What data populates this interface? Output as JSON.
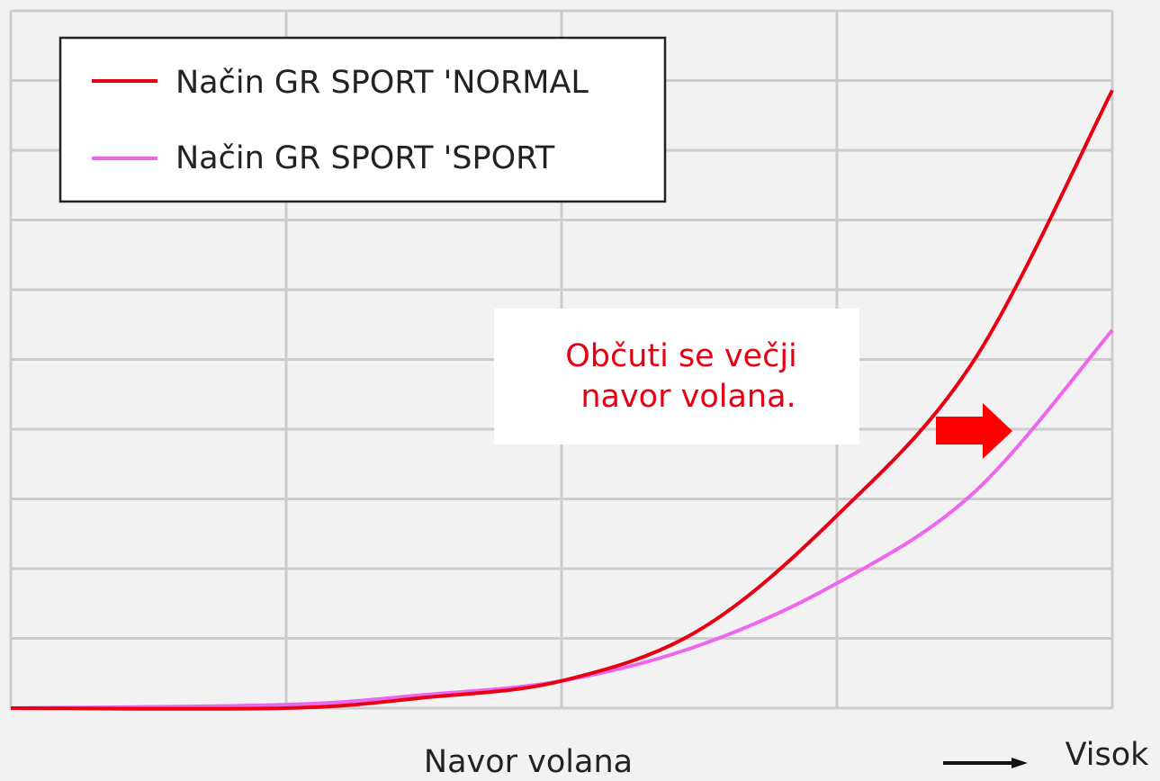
{
  "chart_data": {
    "type": "line",
    "x_label": "Navor volana",
    "x_end_label": "Visok",
    "annotation": [
      "Občuti se večji",
      "navor volana."
    ],
    "x": [
      0,
      1,
      1.5,
      2,
      2.5,
      3,
      3.5,
      4
    ],
    "series": [
      {
        "name": "Način GR SPORT 'NORMAL",
        "color": "#e60012",
        "values": [
          0,
          0,
          0.15,
          0.39,
          1.12,
          2.76,
          5.0,
          8.86
        ]
      },
      {
        "name": "Način GR SPORT 'SPORT",
        "color": "#ee66ee",
        "values": [
          0,
          0.05,
          0.19,
          0.39,
          0.9,
          1.79,
          3.1,
          5.42
        ]
      }
    ],
    "xlim": [
      0,
      4
    ],
    "ylim": [
      0,
      10
    ],
    "xticks": [
      0,
      1,
      2,
      3,
      4
    ],
    "yticks": [
      0,
      1,
      2,
      3,
      4,
      5,
      6,
      7,
      8,
      9,
      10
    ],
    "grid": true
  }
}
